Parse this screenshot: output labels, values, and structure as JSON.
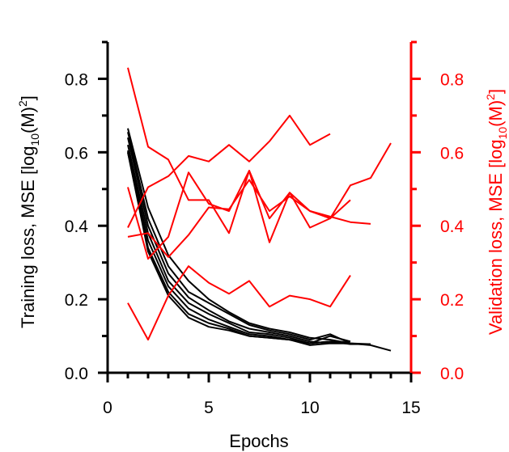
{
  "chart_data": {
    "type": "line",
    "xlabel": "Epochs",
    "xlim": [
      0,
      15
    ],
    "x_ticks": [
      "0",
      "5",
      "10",
      "15"
    ],
    "left_axis": {
      "label_main": "Training loss, MSE [log",
      "label_sub": "10",
      "label_mid": "(M)",
      "label_sup": "2",
      "label_end": "]",
      "ylim": [
        0,
        0.9
      ],
      "ticks": [
        "0.0",
        "0.2",
        "0.4",
        "0.6",
        "0.8"
      ],
      "color": "#000000"
    },
    "right_axis": {
      "label_main": "Validation loss, MSE [log",
      "label_sub": "10",
      "label_mid": "(M)",
      "label_sup": "2",
      "label_end": "]",
      "ylim": [
        0,
        0.9
      ],
      "ticks": [
        "0.0",
        "0.2",
        "0.4",
        "0.6",
        "0.8"
      ],
      "color": "#ff0000"
    },
    "training_series": [
      {
        "x": [
          1,
          2,
          3,
          4,
          5,
          6,
          7,
          8,
          9,
          10,
          11,
          12,
          13,
          14
        ],
        "y": [
          0.665,
          0.45,
          0.32,
          0.25,
          0.2,
          0.165,
          0.135,
          0.12,
          0.11,
          0.095,
          0.09,
          0.08,
          0.075,
          0.06
        ]
      },
      {
        "x": [
          1,
          2,
          3,
          4,
          5,
          6,
          7,
          8,
          9,
          10,
          11,
          12
        ],
        "y": [
          0.655,
          0.42,
          0.29,
          0.22,
          0.19,
          0.16,
          0.13,
          0.115,
          0.105,
          0.09,
          0.105,
          0.08
        ]
      },
      {
        "x": [
          1,
          2,
          3,
          4,
          5,
          6,
          7,
          8,
          9,
          10,
          11,
          12
        ],
        "y": [
          0.64,
          0.4,
          0.27,
          0.205,
          0.17,
          0.14,
          0.12,
          0.11,
          0.1,
          0.085,
          0.08,
          0.08
        ]
      },
      {
        "x": [
          1,
          2,
          3,
          4,
          5,
          6,
          7,
          8,
          9,
          10,
          11,
          12,
          13
        ],
        "y": [
          0.62,
          0.38,
          0.25,
          0.19,
          0.16,
          0.135,
          0.11,
          0.105,
          0.095,
          0.08,
          0.085,
          0.08,
          0.078
        ]
      },
      {
        "x": [
          1,
          2,
          3,
          4,
          5,
          6,
          7,
          8,
          9,
          10,
          11,
          12
        ],
        "y": [
          0.605,
          0.36,
          0.235,
          0.175,
          0.145,
          0.125,
          0.105,
          0.1,
          0.09,
          0.08,
          0.1,
          0.085
        ]
      },
      {
        "x": [
          1,
          2,
          3,
          4,
          5,
          6,
          7,
          8,
          9,
          10,
          11,
          12
        ],
        "y": [
          0.6,
          0.34,
          0.22,
          0.16,
          0.135,
          0.12,
          0.1,
          0.095,
          0.09,
          0.075,
          0.08,
          0.08
        ]
      },
      {
        "x": [
          1,
          2,
          3,
          4,
          5,
          6,
          7,
          8,
          9,
          10,
          11,
          12,
          13
        ],
        "y": [
          0.6,
          0.33,
          0.21,
          0.15,
          0.125,
          0.115,
          0.1,
          0.095,
          0.09,
          0.08,
          0.085,
          0.078,
          0.078
        ]
      }
    ],
    "validation_series": [
      {
        "x": [
          1,
          2,
          3,
          4,
          5,
          6,
          7,
          8,
          9,
          10,
          11,
          12,
          13,
          14
        ],
        "y": [
          0.83,
          0.615,
          0.58,
          0.47,
          0.47,
          0.38,
          0.55,
          0.355,
          0.49,
          0.395,
          0.42,
          0.51,
          0.53,
          0.625
        ]
      },
      {
        "x": [
          1,
          2,
          3,
          4,
          5,
          6,
          7,
          8,
          9,
          10,
          11,
          12
        ],
        "y": [
          0.505,
          0.31,
          0.37,
          0.545,
          0.46,
          0.44,
          0.55,
          0.42,
          0.49,
          0.44,
          0.42,
          0.47
        ]
      },
      {
        "x": [
          1,
          2,
          3,
          4,
          5,
          6,
          7,
          8,
          9,
          10,
          11,
          12,
          13
        ],
        "y": [
          0.37,
          0.38,
          0.315,
          0.375,
          0.45,
          0.445,
          0.525,
          0.44,
          0.48,
          0.44,
          0.425,
          0.41,
          0.405
        ]
      },
      {
        "x": [
          1,
          2,
          3,
          4,
          5,
          6,
          7,
          8,
          9,
          10,
          11
        ],
        "y": [
          0.395,
          0.505,
          0.535,
          0.59,
          0.575,
          0.62,
          0.575,
          0.63,
          0.7,
          0.62,
          0.65
        ]
      },
      {
        "x": [
          1,
          2,
          3,
          4,
          5,
          6,
          7,
          8,
          9,
          10,
          11,
          12
        ],
        "y": [
          0.19,
          0.09,
          0.21,
          0.29,
          0.245,
          0.215,
          0.25,
          0.18,
          0.21,
          0.2,
          0.18,
          0.265
        ]
      }
    ]
  }
}
